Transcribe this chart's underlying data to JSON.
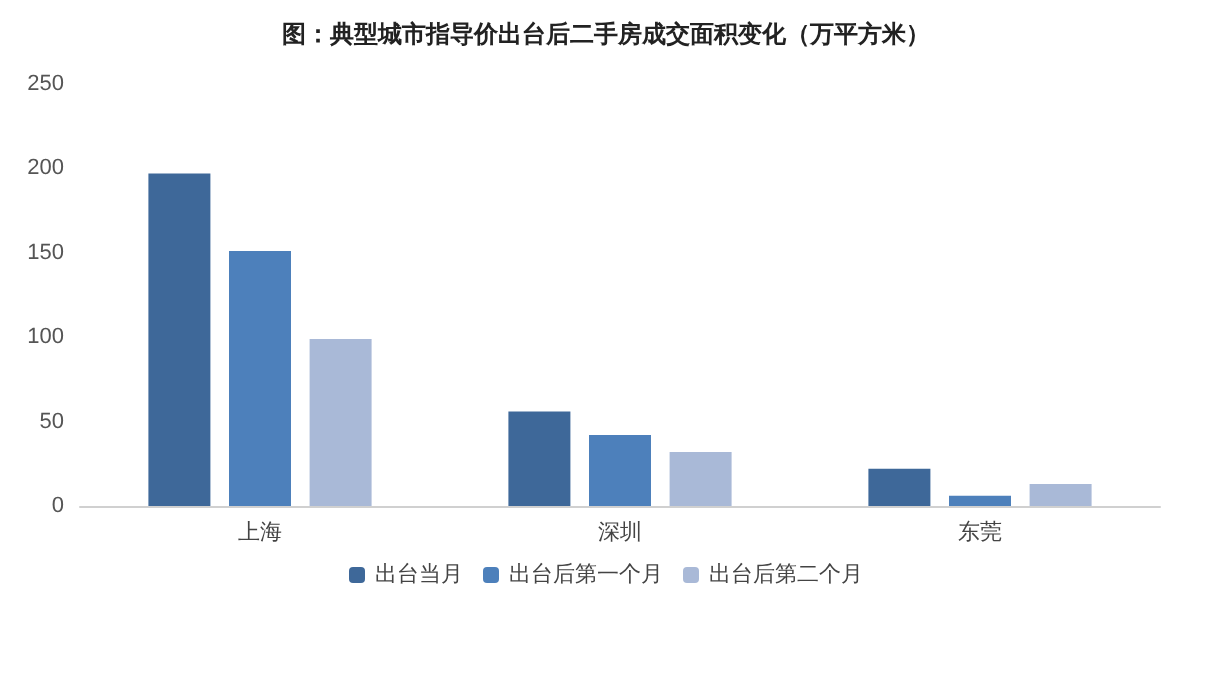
{
  "chart_data": {
    "type": "bar",
    "title": "图：典型城市指导价出台后二手房成交面积变化（万平方米）",
    "categories": [
      "上海",
      "深圳",
      "东莞"
    ],
    "series": [
      {
        "name": "出台当月",
        "color": "#3e6899",
        "values": [
          197,
          56,
          22
        ]
      },
      {
        "name": "出台后第一个月",
        "color": "#4d80bb",
        "values": [
          151,
          42,
          6
        ]
      },
      {
        "name": "出台后第二个月",
        "color": "#a9b9d7",
        "values": [
          99,
          32,
          13
        ]
      }
    ],
    "ylim": [
      0,
      250
    ],
    "yticks": [
      0,
      50,
      100,
      150,
      200,
      250
    ],
    "grid": false,
    "legend": "bottom"
  }
}
